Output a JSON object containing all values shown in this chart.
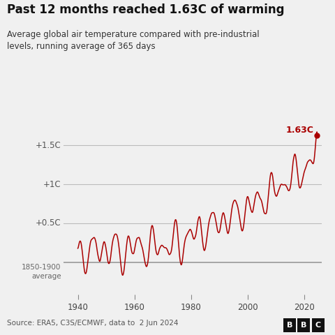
{
  "title": "Past 12 months reached 1.63C of warming",
  "subtitle": "Average global air temperature compared with pre-industrial\nlevels, running average of 365 days",
  "source": "Source: ERA5, C3S/ECMWF, data to  2 Jun 2024",
  "line_color": "#aa0000",
  "bg_color": "#f0f0f0",
  "ytick_labels": [
    "+1.5C",
    "+1C",
    "+0.5C"
  ],
  "ytick_values": [
    1.5,
    1.0,
    0.5
  ],
  "baseline_label": "1850-1900\naverage",
  "xtick_values": [
    1940,
    1960,
    1980,
    2000,
    2020
  ],
  "xmin": 1935,
  "xmax": 2026,
  "ymin": -0.42,
  "ymax": 1.82,
  "final_value": 1.63,
  "final_year": 2024.4,
  "hline_color": "#bbbbbb",
  "baseline_y": 0.0
}
